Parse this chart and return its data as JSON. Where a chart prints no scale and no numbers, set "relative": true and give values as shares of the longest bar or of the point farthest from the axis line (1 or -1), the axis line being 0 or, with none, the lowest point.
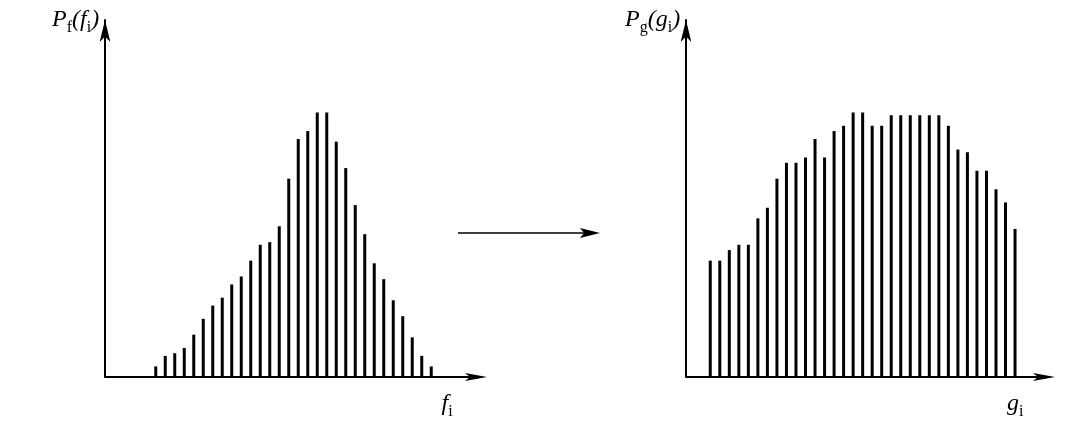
{
  "chart_data": [
    {
      "type": "bar",
      "relative": true,
      "ylabel": "P$_{f}$(f$_{i}$)",
      "xlabel": "f$_{i}$",
      "color": "#000000",
      "categories": [
        null,
        null,
        null,
        null,
        null,
        null,
        null,
        null,
        null,
        null,
        null,
        null,
        null,
        null,
        null,
        null,
        null,
        null,
        null,
        null,
        null,
        null,
        null,
        null,
        null,
        null,
        null,
        null,
        null,
        null
      ],
      "values": [
        0.04,
        0.08,
        0.09,
        0.11,
        0.16,
        0.22,
        0.27,
        0.3,
        0.35,
        0.38,
        0.44,
        0.5,
        0.51,
        0.57,
        0.75,
        0.9,
        0.93,
        1,
        1,
        0.89,
        0.79,
        0.65,
        0.54,
        0.43,
        0.37,
        0.29,
        0.23,
        0.15,
        0.08,
        0.04
      ]
    },
    {
      "type": "bar",
      "relative": true,
      "ylabel": "P$_{g}$(g$_{i}$)",
      "xlabel": "g$_{i}$",
      "color": "#000000",
      "categories": [
        null,
        null,
        null,
        null,
        null,
        null,
        null,
        null,
        null,
        null,
        null,
        null,
        null,
        null,
        null,
        null,
        null,
        null,
        null,
        null,
        null,
        null,
        null,
        null,
        null,
        null,
        null,
        null,
        null,
        null,
        null,
        null,
        null
      ],
      "values": [
        0.44,
        0.44,
        0.48,
        0.5,
        0.5,
        0.6,
        0.64,
        0.75,
        0.81,
        0.81,
        0.83,
        0.9,
        0.83,
        0.93,
        0.95,
        1,
        1,
        0.95,
        0.95,
        0.99,
        0.99,
        0.99,
        0.99,
        0.99,
        0.99,
        0.95,
        0.86,
        0.85,
        0.78,
        0.78,
        0.71,
        0.66,
        0.56
      ]
    }
  ]
}
